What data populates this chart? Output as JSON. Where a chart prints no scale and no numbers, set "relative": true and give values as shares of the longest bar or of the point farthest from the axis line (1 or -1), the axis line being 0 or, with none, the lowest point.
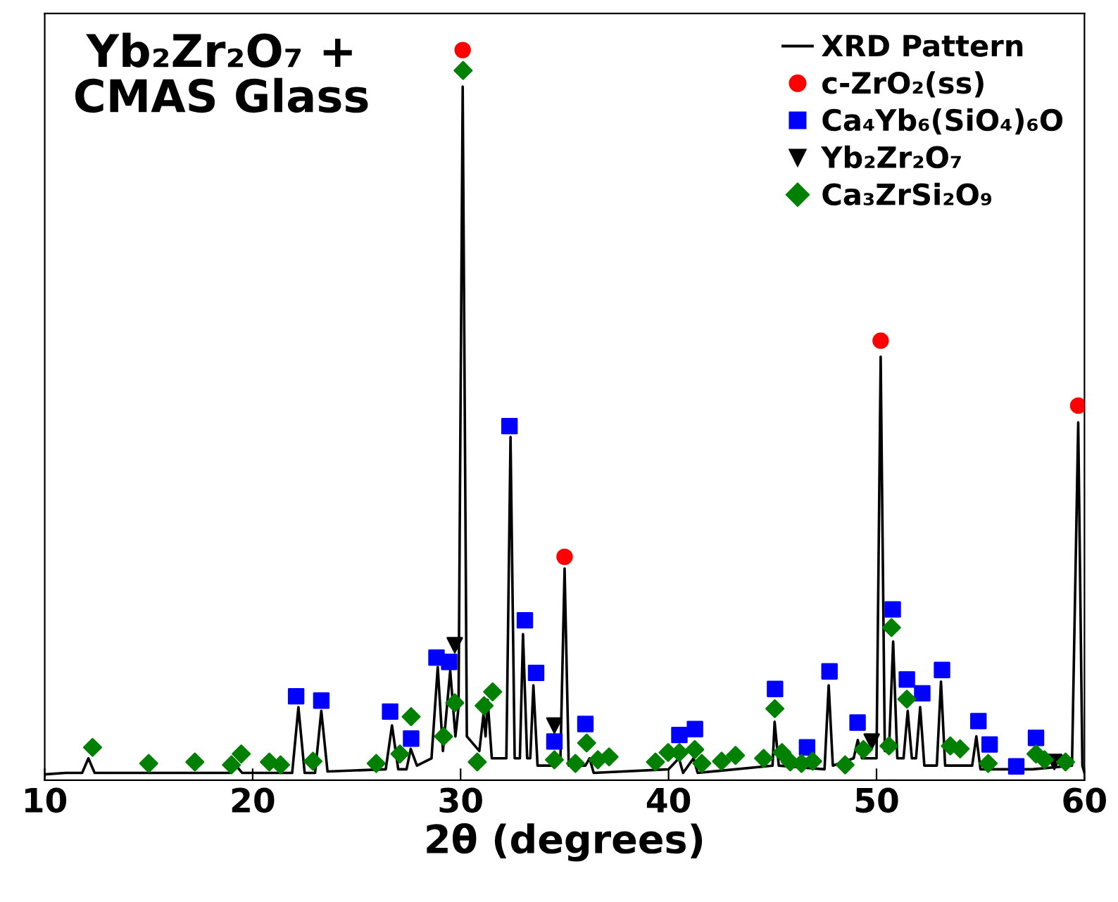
{
  "chart_data": {
    "type": "line",
    "title": "Yb₂Zr₂O₇ +\nCMAS Glass",
    "xlabel": "2θ (degrees)",
    "relative": true,
    "xlim": [
      10,
      60
    ],
    "xticks": [
      10,
      20,
      30,
      40,
      50,
      60
    ],
    "grid": false,
    "legend": "top right",
    "series": [
      {
        "name": "XRD Pattern",
        "color": "#000000",
        "marker": "none",
        "x": [
          10,
          11.0,
          11.8,
          12.1,
          12.4,
          18.9,
          19.2,
          19.5,
          21.9,
          22.2,
          22.5,
          23.0,
          23.3,
          23.6,
          26.4,
          26.7,
          27.0,
          27.4,
          27.6,
          27.9,
          28.6,
          28.9,
          29.15,
          29.5,
          29.75,
          29.9,
          30.1,
          30.3,
          30.9,
          31.1,
          31.2,
          31.3,
          31.5,
          32.2,
          32.4,
          32.6,
          32.85,
          33.0,
          33.2,
          33.35,
          33.5,
          33.7,
          34.6,
          34.8,
          35.0,
          35.2,
          36.0,
          36.2,
          36.4,
          40.0,
          40.5,
          40.7,
          41.2,
          41.4,
          45.0,
          45.1,
          45.3,
          47.5,
          47.7,
          47.9,
          48.9,
          49.1,
          49.3,
          50.0,
          50.2,
          50.4,
          50.6,
          50.8,
          51.0,
          51.3,
          51.5,
          51.7,
          51.9,
          52.1,
          52.3,
          52.9,
          53.1,
          53.3,
          54.6,
          54.8,
          55.0,
          57.5,
          59.4,
          59.7,
          59.9,
          60.0
        ],
        "values": [
          0.008,
          0.01,
          0.01,
          0.03,
          0.01,
          0.01,
          0.02,
          0.01,
          0.01,
          0.1,
          0.01,
          0.01,
          0.095,
          0.012,
          0.015,
          0.075,
          0.015,
          0.015,
          0.043,
          0.02,
          0.03,
          0.155,
          0.04,
          0.15,
          0.06,
          0.1,
          0.95,
          0.06,
          0.04,
          0.09,
          0.06,
          0.11,
          0.03,
          0.03,
          0.47,
          0.03,
          0.03,
          0.2,
          0.03,
          0.03,
          0.13,
          0.02,
          0.02,
          0.03,
          0.29,
          0.02,
          0.02,
          0.03,
          0.01,
          0.015,
          0.03,
          0.01,
          0.03,
          0.01,
          0.02,
          0.08,
          0.02,
          0.015,
          0.13,
          0.02,
          0.03,
          0.055,
          0.03,
          0.03,
          0.58,
          0.04,
          0.04,
          0.19,
          0.03,
          0.03,
          0.095,
          0.03,
          0.03,
          0.1,
          0.02,
          0.02,
          0.135,
          0.02,
          0.02,
          0.06,
          0.015,
          0.015,
          0.02,
          0.49,
          0.02,
          0.01
        ]
      },
      {
        "name": "c-ZrO₂(ss)",
        "type": "scatter",
        "color": "#ff0000",
        "marker": "circle",
        "x": [
          30.1,
          35.0,
          50.2,
          59.7
        ],
        "values": [
          1.0,
          0.306,
          0.602,
          0.513
        ]
      },
      {
        "name": "Ca₄Yb₆(SiO₄)₆O",
        "type": "scatter",
        "color": "#0000ff",
        "marker": "square",
        "x": [
          22.09,
          23.3,
          26.61,
          27.62,
          28.84,
          29.45,
          32.35,
          33.09,
          33.63,
          34.51,
          36.0,
          40.52,
          41.27,
          45.12,
          46.66,
          47.74,
          49.09,
          50.78,
          51.46,
          52.2,
          53.15,
          54.9,
          55.44,
          56.72,
          57.67
        ],
        "values": [
          0.115,
          0.109,
          0.094,
          0.057,
          0.168,
          0.162,
          0.485,
          0.219,
          0.147,
          0.053,
          0.077,
          0.062,
          0.07,
          0.125,
          0.045,
          0.149,
          0.079,
          0.234,
          0.138,
          0.119,
          0.151,
          0.081,
          0.049,
          0.019,
          0.058
        ]
      },
      {
        "name": "Yb₂Zr₂O₇",
        "type": "scatter",
        "color": "#000000",
        "marker": "triangle",
        "x": [
          29.72,
          34.51,
          49.77,
          58.55
        ],
        "values": [
          0.185,
          0.075,
          0.053,
          0.025
        ]
      },
      {
        "name": "Ca₃ZrSi₂O₉",
        "type": "scatter",
        "color": "#008000",
        "marker": "diamond",
        "x": [
          12.3,
          15.0,
          17.22,
          18.98,
          19.45,
          20.8,
          21.34,
          22.9,
          25.94,
          27.08,
          27.62,
          29.18,
          29.72,
          30.12,
          30.8,
          31.13,
          31.54,
          34.51,
          35.52,
          36.06,
          36.6,
          37.14,
          39.37,
          39.98,
          40.52,
          41.26,
          41.6,
          42.55,
          43.22,
          44.57,
          45.11,
          45.45,
          45.85,
          46.39,
          46.93,
          48.49,
          49.37,
          50.72,
          50.6,
          51.46,
          53.55,
          54.02,
          55.37,
          57.67,
          58.08,
          59.09
        ],
        "values": [
          0.045,
          0.023,
          0.025,
          0.021,
          0.036,
          0.025,
          0.021,
          0.026,
          0.023,
          0.036,
          0.087,
          0.06,
          0.106,
          0.972,
          0.025,
          0.102,
          0.121,
          0.028,
          0.023,
          0.051,
          0.028,
          0.032,
          0.025,
          0.038,
          0.038,
          0.042,
          0.023,
          0.026,
          0.034,
          0.03,
          0.098,
          0.038,
          0.025,
          0.023,
          0.026,
          0.021,
          0.042,
          0.209,
          0.047,
          0.111,
          0.047,
          0.043,
          0.023,
          0.036,
          0.028,
          0.025
        ]
      }
    ]
  }
}
